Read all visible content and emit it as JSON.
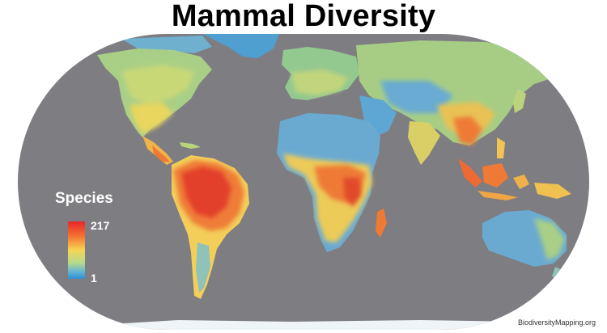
{
  "title": "Mammal Diversity",
  "legend": {
    "title": "Species",
    "max": "217",
    "min": "1"
  },
  "credit": "BiodiversityMapping.org",
  "colors": {
    "ocean": "#7d7d82",
    "high": "#e8262a",
    "mid_high": "#f5702f",
    "mid": "#f6d555",
    "mid_low": "#b8d98a",
    "low": "#2f8fd2",
    "ice": "#eef4f7"
  }
}
